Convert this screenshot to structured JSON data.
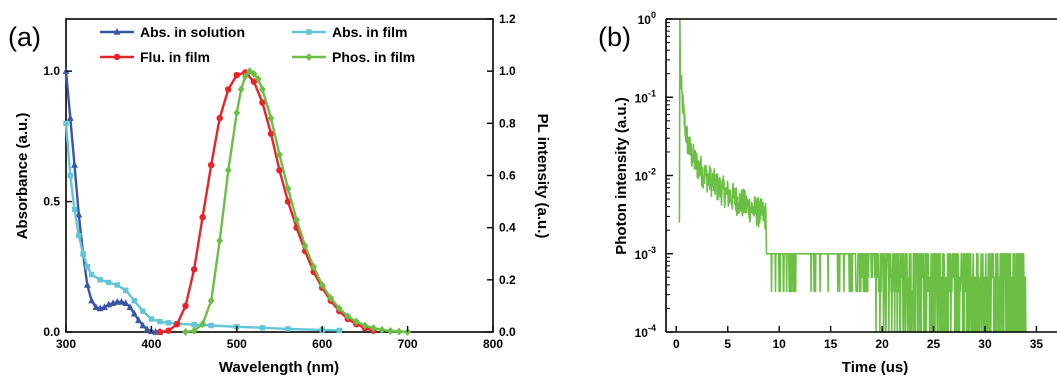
{
  "chart_data": [
    {
      "type": "line",
      "panel_label": "(a)",
      "xlabel": "Wavelength (nm)",
      "ylabel": "Absorbance (a.u.)",
      "y2label": "PL intensity (a.u.)",
      "xlim": [
        300,
        800
      ],
      "ylim": [
        0,
        1.2
      ],
      "y2lim": [
        0,
        1.2
      ],
      "xticks": [
        "300",
        "400",
        "500",
        "600",
        "700",
        "800"
      ],
      "yticks": [
        "0.0",
        "0.5",
        "1.0"
      ],
      "y2ticks": [
        "0.0",
        "0.2",
        "0.4",
        "0.6",
        "0.8",
        "1.0",
        "1.2"
      ],
      "legend_position": "top",
      "series": [
        {
          "name": "Abs. in solution",
          "color": "#3a55a4",
          "marker": "triangle",
          "axis": "left",
          "x": [
            300,
            305,
            310,
            315,
            320,
            325,
            330,
            335,
            340,
            345,
            350,
            355,
            360,
            365,
            370,
            375,
            380,
            385,
            390,
            395,
            400,
            405,
            410
          ],
          "y": [
            1.0,
            0.82,
            0.64,
            0.45,
            0.3,
            0.18,
            0.12,
            0.095,
            0.09,
            0.095,
            0.105,
            0.11,
            0.115,
            0.115,
            0.11,
            0.095,
            0.07,
            0.045,
            0.025,
            0.01,
            0.003,
            0.0,
            0.0
          ]
        },
        {
          "name": "Abs. in film",
          "color": "#62c6d9",
          "marker": "square",
          "axis": "left",
          "x": [
            300,
            305,
            310,
            315,
            320,
            325,
            330,
            340,
            350,
            360,
            370,
            380,
            390,
            400,
            410,
            420,
            430,
            450,
            470,
            500,
            530,
            560,
            600,
            620
          ],
          "y": [
            0.8,
            0.6,
            0.47,
            0.37,
            0.3,
            0.25,
            0.22,
            0.2,
            0.19,
            0.18,
            0.16,
            0.12,
            0.08,
            0.05,
            0.04,
            0.035,
            0.032,
            0.028,
            0.025,
            0.02,
            0.016,
            0.012,
            0.008,
            0.006
          ]
        },
        {
          "name": "Flu. in film",
          "color": "#e8232a",
          "marker": "circle",
          "axis": "right",
          "x": [
            410,
            420,
            430,
            440,
            450,
            460,
            470,
            480,
            490,
            500,
            510,
            520,
            530,
            540,
            550,
            560,
            570,
            580,
            590,
            600,
            610,
            620,
            630,
            640,
            650,
            660
          ],
          "y": [
            0.0,
            0.005,
            0.03,
            0.1,
            0.24,
            0.44,
            0.64,
            0.82,
            0.93,
            0.985,
            0.995,
            0.96,
            0.88,
            0.76,
            0.62,
            0.5,
            0.4,
            0.31,
            0.23,
            0.17,
            0.12,
            0.08,
            0.05,
            0.03,
            0.015,
            0.005
          ]
        },
        {
          "name": "Phos. in film",
          "color": "#6bbf45",
          "marker": "diamond",
          "axis": "right",
          "x": [
            440,
            450,
            460,
            470,
            480,
            490,
            500,
            505,
            510,
            515,
            520,
            525,
            530,
            540,
            550,
            560,
            570,
            580,
            590,
            600,
            610,
            620,
            630,
            640,
            650,
            660,
            670,
            680,
            690,
            700
          ],
          "y": [
            0.0,
            0.005,
            0.03,
            0.12,
            0.35,
            0.62,
            0.84,
            0.93,
            0.98,
            1.0,
            0.99,
            0.97,
            0.93,
            0.82,
            0.68,
            0.55,
            0.43,
            0.33,
            0.25,
            0.18,
            0.13,
            0.09,
            0.06,
            0.04,
            0.025,
            0.015,
            0.008,
            0.004,
            0.002,
            0.0
          ]
        }
      ]
    },
    {
      "type": "line",
      "panel_label": "(b)",
      "xlabel": "Time (us)",
      "ylabel": "Photon intensity (a.u.)",
      "xlim": [
        -1,
        37
      ],
      "ylim_log10": [
        -4,
        0
      ],
      "yscale": "log",
      "xticks": [
        "0",
        "5",
        "10",
        "15",
        "20",
        "25",
        "30",
        "35"
      ],
      "yticks": [
        {
          "base": "10",
          "exp": "0"
        },
        {
          "base": "10",
          "exp": "-1"
        },
        {
          "base": "10",
          "exp": "-2"
        },
        {
          "base": "10",
          "exp": "-3"
        },
        {
          "base": "10",
          "exp": "-4"
        }
      ],
      "series": [
        {
          "color": "#6bbf45",
          "decay": {
            "t_start": 0.3,
            "t_end": 34,
            "prompt_peak": 1.0,
            "components": [
              {
                "amplitude": 0.9,
                "tau_us": 0.22
              },
              {
                "amplitude": 0.03,
                "tau_us": 1.1
              },
              {
                "amplitude": 0.012,
                "tau_us": 6.0
              }
            ],
            "noise_floor": 0.0002,
            "counting_step": 0.001
          }
        }
      ]
    }
  ]
}
